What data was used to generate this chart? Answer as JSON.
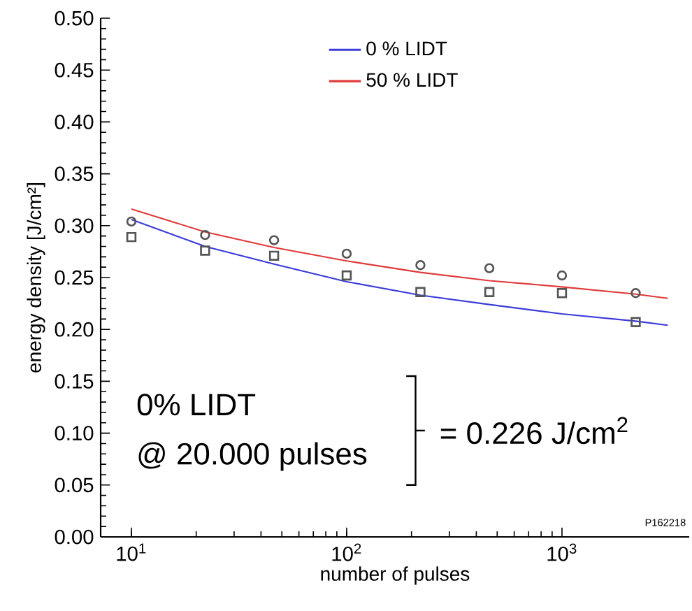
{
  "chart_data": {
    "type": "scatter",
    "xlabel": "number of pulses",
    "ylabel": "energy density [J/cm²]",
    "log": "x",
    "xlim": [
      7.2,
      3900
    ],
    "ylim": [
      0,
      0.5
    ],
    "xticks": [
      {
        "value": 10,
        "label": "10$^{1}$"
      },
      {
        "value": 100,
        "label": "10$^{2}$"
      },
      {
        "value": 1000,
        "label": "10$^{3}$"
      }
    ],
    "yticks": [
      {
        "value": 0,
        "label": "0.00"
      },
      {
        "value": 0.05,
        "label": "0.05"
      },
      {
        "value": 0.1,
        "label": "0.10"
      },
      {
        "value": 0.15,
        "label": "0.15"
      },
      {
        "value": 0.2,
        "label": "0.20"
      },
      {
        "value": 0.25,
        "label": "0.25"
      },
      {
        "value": 0.3,
        "label": "0.30"
      },
      {
        "value": 0.35,
        "label": "0.35"
      },
      {
        "value": 0.4,
        "label": "0.40"
      },
      {
        "value": 0.45,
        "label": "0.45"
      },
      {
        "value": 0.5,
        "label": "0.50"
      }
    ],
    "grid": false,
    "legend": "top",
    "series": [
      {
        "type": "line",
        "name": "0 % LIDT",
        "color": "#3b3bd9",
        "marker": "none",
        "x": [
          10,
          22,
          46,
          100,
          220,
          460,
          1000,
          2200,
          3100
        ],
        "values": [
          0.306,
          0.28,
          0.263,
          0.246,
          0.233,
          0.224,
          0.215,
          0.208,
          0.204
        ]
      },
      {
        "type": "line",
        "name": "50 % LIDT",
        "color": "#e03a3a",
        "marker": "none",
        "x": [
          10,
          22,
          46,
          100,
          220,
          460,
          1000,
          2200,
          3100
        ],
        "values": [
          0.316,
          0.294,
          0.279,
          0.266,
          0.255,
          0.247,
          0.241,
          0.234,
          0.23
        ]
      },
      {
        "color": "#555555",
        "marker": "circle",
        "x": [
          10,
          22,
          46,
          100,
          220,
          460,
          1000,
          2200
        ],
        "values": [
          0.304,
          0.291,
          0.286,
          0.273,
          0.262,
          0.259,
          0.252,
          0.235
        ]
      },
      {
        "color": "#555555",
        "marker": "square",
        "x": [
          10,
          22,
          46,
          100,
          220,
          460,
          1000,
          2200
        ],
        "values": [
          0.289,
          0.276,
          0.271,
          0.252,
          0.236,
          0.236,
          0.235,
          0.207
        ]
      }
    ],
    "annotations": [
      "0% LIDT",
      "@ 20.000 pulses",
      "= 0.226 J/cm$^{2}$",
      "P162218"
    ]
  }
}
